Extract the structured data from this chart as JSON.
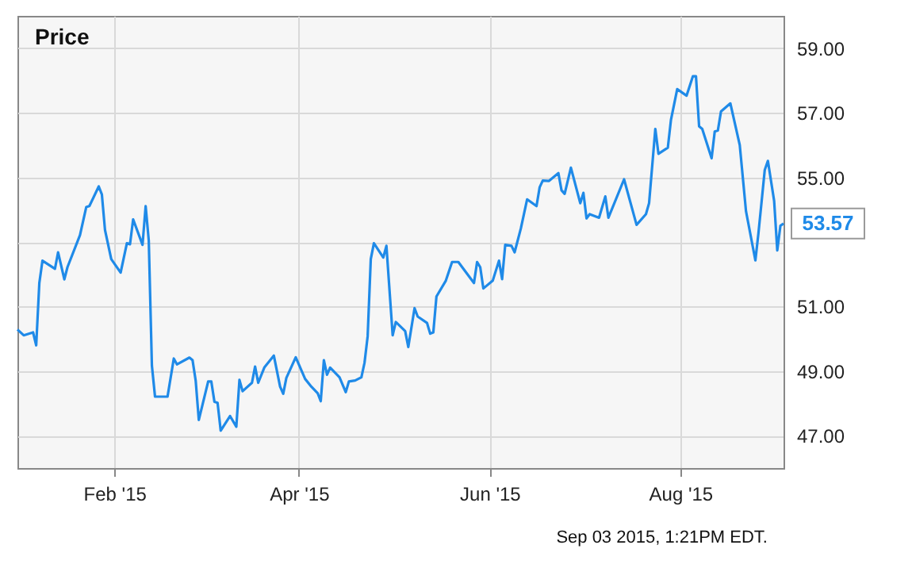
{
  "chart_data": {
    "type": "line",
    "title": "Price",
    "x": [
      "2015-01-01",
      "2015-01-03",
      "2015-01-06",
      "2015-01-07",
      "2015-01-08",
      "2015-01-09",
      "2015-01-13",
      "2015-01-14",
      "2015-01-16",
      "2015-01-17",
      "2015-01-21",
      "2015-01-23",
      "2015-01-24",
      "2015-01-27",
      "2015-01-28",
      "2015-01-29",
      "2015-01-31",
      "2015-02-03",
      "2015-02-05",
      "2015-02-06",
      "2015-02-07",
      "2015-02-10",
      "2015-02-11",
      "2015-02-12",
      "2015-02-13",
      "2015-02-14",
      "2015-02-18",
      "2015-02-20",
      "2015-02-21",
      "2015-02-25",
      "2015-02-26",
      "2015-02-27",
      "2015-02-28",
      "2015-03-03",
      "2015-03-04",
      "2015-03-05",
      "2015-03-06",
      "2015-03-07",
      "2015-03-10",
      "2015-03-12",
      "2015-03-13",
      "2015-03-14",
      "2015-03-17",
      "2015-03-18",
      "2015-03-19",
      "2015-03-21",
      "2015-03-24",
      "2015-03-26",
      "2015-03-27",
      "2015-03-28",
      "2015-03-31",
      "2015-04-03",
      "2015-04-05",
      "2015-04-07",
      "2015-04-08",
      "2015-04-09",
      "2015-04-10",
      "2015-04-11",
      "2015-04-14",
      "2015-04-16",
      "2015-04-17",
      "2015-04-19",
      "2015-04-21",
      "2015-04-22",
      "2015-04-23",
      "2015-04-24",
      "2015-04-25",
      "2015-04-28",
      "2015-04-29",
      "2015-05-01",
      "2015-05-02",
      "2015-05-05",
      "2015-05-06",
      "2015-05-08",
      "2015-05-09",
      "2015-05-12",
      "2015-05-13",
      "2015-05-14",
      "2015-05-15",
      "2015-05-18",
      "2015-05-20",
      "2015-05-22",
      "2015-05-27",
      "2015-05-28",
      "2015-05-29",
      "2015-05-30",
      "2015-06-02",
      "2015-06-04",
      "2015-06-05",
      "2015-06-06",
      "2015-06-08",
      "2015-06-09",
      "2015-06-11",
      "2015-06-13",
      "2015-06-16",
      "2015-06-17",
      "2015-06-18",
      "2015-06-20",
      "2015-06-23",
      "2015-06-24",
      "2015-06-25",
      "2015-06-27",
      "2015-06-30",
      "2015-07-01",
      "2015-07-02",
      "2015-07-03",
      "2015-07-06",
      "2015-07-08",
      "2015-07-09",
      "2015-07-14",
      "2015-07-18",
      "2015-07-21",
      "2015-07-22",
      "2015-07-24",
      "2015-07-25",
      "2015-07-28",
      "2015-07-29",
      "2015-07-31",
      "2015-08-03",
      "2015-08-05",
      "2015-08-06",
      "2015-08-07",
      "2015-08-08",
      "2015-08-11",
      "2015-08-12",
      "2015-08-13",
      "2015-08-14",
      "2015-08-17",
      "2015-08-20",
      "2015-08-22",
      "2015-08-25",
      "2015-08-26",
      "2015-08-28",
      "2015-08-29",
      "2015-08-31",
      "2015-09-01",
      "2015-09-02",
      "2015-09-03"
    ],
    "series": [
      {
        "color": "#1f8ae8",
        "values": [
          50.29,
          50.11,
          50.2,
          49.8,
          51.73,
          52.42,
          52.17,
          52.68,
          51.84,
          52.22,
          53.21,
          54.08,
          54.11,
          54.72,
          54.47,
          53.37,
          52.47,
          52.05,
          52.96,
          52.93,
          53.7,
          52.91,
          54.11,
          53.04,
          49.17,
          48.21,
          48.21,
          49.39,
          49.21,
          49.42,
          49.34,
          48.71,
          47.49,
          48.68,
          48.68,
          48.05,
          48.02,
          47.16,
          47.61,
          47.28,
          48.73,
          48.38,
          48.64,
          49.14,
          48.64,
          49.12,
          49.48,
          48.52,
          48.3,
          48.79,
          49.43,
          48.76,
          48.52,
          48.32,
          48.07,
          49.34,
          48.89,
          49.11,
          48.81,
          48.35,
          48.68,
          48.71,
          48.81,
          49.26,
          50.08,
          52.47,
          52.96,
          52.52,
          52.88,
          50.11,
          50.52,
          50.24,
          49.75,
          50.95,
          50.69,
          50.49,
          50.16,
          50.2,
          51.31,
          51.8,
          52.38,
          52.38,
          51.73,
          52.38,
          52.22,
          51.56,
          51.8,
          52.42,
          51.85,
          52.91,
          52.88,
          52.68,
          53.42,
          54.32,
          54.11,
          54.69,
          54.9,
          54.89,
          55.13,
          54.6,
          54.49,
          55.3,
          54.2,
          54.52,
          53.73,
          53.86,
          53.75,
          54.41,
          53.75,
          54.94,
          53.53,
          53.86,
          54.2,
          56.5,
          55.73,
          55.92,
          56.78,
          57.73,
          57.53,
          58.13,
          58.13,
          56.58,
          56.5,
          55.59,
          56.42,
          56.45,
          57.04,
          57.29,
          56.0,
          53.95,
          52.43,
          53.29,
          55.23,
          55.51,
          54.27,
          52.74,
          53.5,
          53.57
        ]
      }
    ],
    "xlim": [
      "2015-01-01",
      "2015-09-03"
    ],
    "xticks": [
      {
        "value": "2015-02-01",
        "label": "Feb '15"
      },
      {
        "value": "2015-04-01",
        "label": "Apr '15"
      },
      {
        "value": "2015-06-01",
        "label": "Jun '15"
      },
      {
        "value": "2015-08-01",
        "label": "Aug '15"
      }
    ],
    "ylim": [
      46,
      60
    ],
    "yticks": [
      {
        "value": 47,
        "label": "47.00"
      },
      {
        "value": 49,
        "label": "49.00"
      },
      {
        "value": 51,
        "label": "51.00"
      },
      {
        "value": 53,
        "label": null
      },
      {
        "value": 55,
        "label": "55.00"
      },
      {
        "value": 57,
        "label": "57.00"
      },
      {
        "value": 59,
        "label": "59.00"
      }
    ],
    "grid": true,
    "marker": "none",
    "line_style": "solid",
    "annotations": [
      {
        "text": "53.57",
        "x": "2015-09-03",
        "y": 53.57
      },
      "Sep 03 2015, 1:21PM EDT."
    ]
  }
}
